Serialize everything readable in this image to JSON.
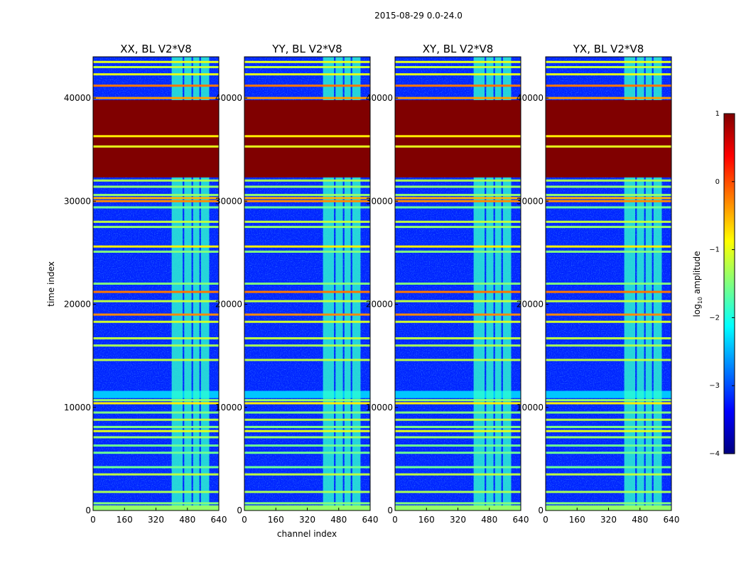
{
  "chart_data": {
    "type": "heatmap",
    "title": "2015-08-29 0.0-24.0",
    "xlabel": "channel index",
    "ylabel": "time index",
    "xlim": [
      0,
      640
    ],
    "ylim": [
      0,
      44000
    ],
    "x_ticks": [
      "0",
      "160",
      "320",
      "480",
      "640"
    ],
    "y_ticks": [
      "0",
      "10000",
      "20000",
      "30000",
      "40000"
    ],
    "x_tick_values": [
      0,
      160,
      320,
      480,
      640
    ],
    "y_tick_values": [
      0,
      10000,
      20000,
      30000,
      40000
    ],
    "panels": [
      {
        "title": "XX, BL V2*V8",
        "show_xlabel": false
      },
      {
        "title": "YY, BL V2*V8",
        "show_xlabel": true
      },
      {
        "title": "XY, BL V2*V8",
        "show_xlabel": false
      },
      {
        "title": "YX, BL V2*V8",
        "show_xlabel": false
      }
    ],
    "colorbar": {
      "label": "log10 amplitude",
      "label_main": "log",
      "label_sub": "10",
      "label_tail": " amplitude",
      "range": [
        -4,
        1
      ],
      "ticks": [
        "1",
        "0",
        "−1",
        "−2",
        "−3",
        "−4"
      ],
      "tick_values": [
        1,
        0,
        -1,
        -2,
        -3,
        -4
      ],
      "colormap": [
        "#00007f",
        "#0000ff",
        "#007fff",
        "#00ffff",
        "#7fff7f",
        "#ffff00",
        "#ff7f00",
        "#ff0000",
        "#7f0000"
      ]
    },
    "flagged_blocks": [
      {
        "t_start": 32300,
        "t_end": 39800,
        "value": 1.0
      }
    ],
    "horizontal_bands": [
      {
        "t": 300,
        "value": -1.3
      },
      {
        "t": 700,
        "value": -1.5
      },
      {
        "t": 1800,
        "value": -1.3
      },
      {
        "t": 3500,
        "value": -1.2
      },
      {
        "t": 4200,
        "value": -1.6
      },
      {
        "t": 5600,
        "value": -1.6
      },
      {
        "t": 6300,
        "value": -1.6
      },
      {
        "t": 7100,
        "value": -1.4
      },
      {
        "t": 7700,
        "value": -1.0
      },
      {
        "t": 8100,
        "value": -1.5
      },
      {
        "t": 8800,
        "value": -1.2
      },
      {
        "t": 9500,
        "value": -1.5
      },
      {
        "t": 10400,
        "value": -0.8
      },
      {
        "t": 10700,
        "value": -1.4
      },
      {
        "t": 14600,
        "value": -1.2
      },
      {
        "t": 16000,
        "value": -1.3
      },
      {
        "t": 16700,
        "value": -1.2
      },
      {
        "t": 18300,
        "value": -1.1
      },
      {
        "t": 19000,
        "value": -0.3
      },
      {
        "t": 20300,
        "value": -1.2
      },
      {
        "t": 21200,
        "value": -0.2
      },
      {
        "t": 22000,
        "value": -1.5
      },
      {
        "t": 25100,
        "value": -1.5
      },
      {
        "t": 25600,
        "value": -0.8
      },
      {
        "t": 27500,
        "value": -1.4
      },
      {
        "t": 28000,
        "value": -1.2
      },
      {
        "t": 29400,
        "value": -1.6
      },
      {
        "t": 30000,
        "value": -0.3
      },
      {
        "t": 30300,
        "value": -0.5
      },
      {
        "t": 30600,
        "value": -1.4
      },
      {
        "t": 31400,
        "value": -1.4
      },
      {
        "t": 32000,
        "value": -1.3
      },
      {
        "t": 36300,
        "value": -0.8
      },
      {
        "t": 35300,
        "value": -1.0
      },
      {
        "t": 40000,
        "value": -0.4
      },
      {
        "t": 41200,
        "value": -0.2
      },
      {
        "t": 42300,
        "value": -1.0
      },
      {
        "t": 43000,
        "value": -1.2
      },
      {
        "t": 43500,
        "value": -1.0
      }
    ],
    "bottom_band": {
      "t_start": 0,
      "t_end": 500,
      "value": -1.4
    },
    "broad_bands": [
      {
        "t_start": 10900,
        "t_end": 11600,
        "value": -2.4
      }
    ],
    "rfi_region": {
      "channel_start": 400,
      "channel_end": 595,
      "value": -1.9,
      "gap_channels": [
        460,
        505,
        545
      ]
    },
    "background_value": -3.2
  }
}
